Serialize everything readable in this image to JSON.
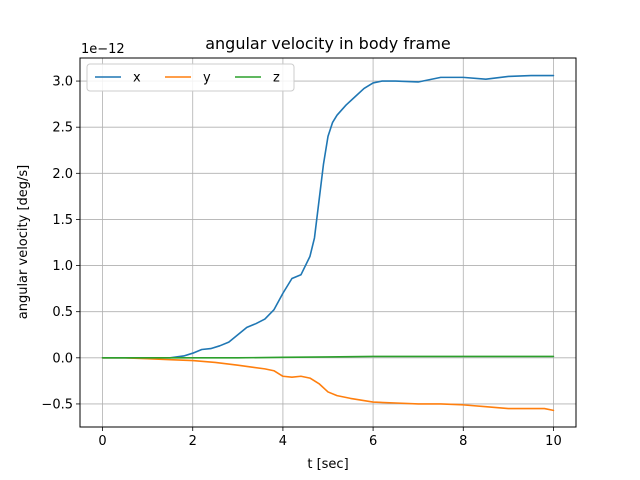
{
  "chart_data": {
    "type": "line",
    "title": "angular velocity in body frame",
    "xlabel": "t [sec]",
    "ylabel": "angular velocity [deg/s]",
    "y_offset_text": "1e−12",
    "y_scale_factor": 1e-12,
    "xlim": [
      -0.5,
      10.5
    ],
    "ylim": [
      -0.75,
      3.25
    ],
    "xticks": [
      0,
      2,
      4,
      6,
      8,
      10
    ],
    "xtick_labels": [
      "0",
      "2",
      "4",
      "6",
      "8",
      "10"
    ],
    "yticks": [
      -0.5,
      0.0,
      0.5,
      1.0,
      1.5,
      2.0,
      2.5,
      3.0
    ],
    "ytick_labels": [
      "−0.5",
      "0.0",
      "0.5",
      "1.0",
      "1.5",
      "2.0",
      "2.5",
      "3.0"
    ],
    "grid": true,
    "legend_placement": "top-left",
    "legend_columns": 3,
    "series": [
      {
        "name": "x",
        "color": "#1f77b4",
        "x": [
          0,
          0.5,
          1.0,
          1.5,
          1.8,
          2.0,
          2.2,
          2.4,
          2.6,
          2.8,
          3.0,
          3.2,
          3.4,
          3.6,
          3.8,
          4.0,
          4.2,
          4.4,
          4.6,
          4.7,
          4.8,
          4.9,
          5.0,
          5.1,
          5.2,
          5.4,
          5.6,
          5.8,
          6.0,
          6.2,
          6.5,
          7.0,
          7.5,
          8.0,
          8.5,
          9.0,
          9.5,
          10.0
        ],
        "y": [
          0.0,
          0.0,
          0.0,
          0.0,
          0.02,
          0.05,
          0.09,
          0.1,
          0.13,
          0.17,
          0.25,
          0.33,
          0.37,
          0.42,
          0.52,
          0.7,
          0.86,
          0.9,
          1.1,
          1.3,
          1.7,
          2.1,
          2.4,
          2.55,
          2.63,
          2.74,
          2.83,
          2.92,
          2.98,
          3.0,
          3.0,
          2.99,
          3.04,
          3.04,
          3.02,
          3.05,
          3.06,
          3.06
        ]
      },
      {
        "name": "y",
        "color": "#ff7f0e",
        "x": [
          0,
          0.5,
          1.0,
          1.5,
          2.0,
          2.5,
          3.0,
          3.3,
          3.6,
          3.8,
          4.0,
          4.2,
          4.4,
          4.6,
          4.8,
          5.0,
          5.2,
          5.5,
          6.0,
          6.5,
          7.0,
          7.5,
          8.0,
          8.5,
          9.0,
          9.5,
          9.8,
          10.0
        ],
        "y": [
          0.0,
          0.0,
          -0.01,
          -0.02,
          -0.03,
          -0.05,
          -0.08,
          -0.1,
          -0.12,
          -0.14,
          -0.2,
          -0.21,
          -0.2,
          -0.22,
          -0.28,
          -0.37,
          -0.41,
          -0.44,
          -0.48,
          -0.49,
          -0.5,
          -0.5,
          -0.51,
          -0.53,
          -0.55,
          -0.55,
          -0.55,
          -0.57
        ]
      },
      {
        "name": "z",
        "color": "#2ca02c",
        "x": [
          0,
          1,
          2,
          3,
          4,
          5,
          6,
          7,
          8,
          9,
          10
        ],
        "y": [
          0.0,
          0.0,
          0.0,
          0.0,
          0.005,
          0.01,
          0.015,
          0.015,
          0.015,
          0.015,
          0.015
        ]
      }
    ]
  }
}
